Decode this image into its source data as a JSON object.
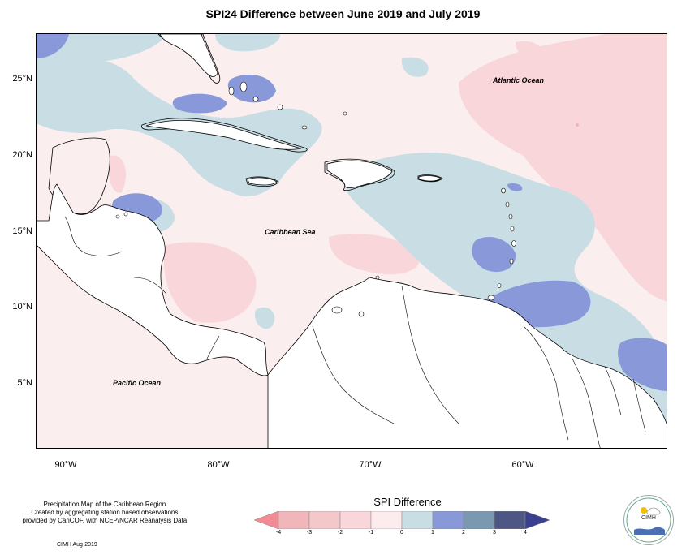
{
  "title": "SPI24 Difference between June 2019 and July 2019",
  "latitude_labels": [
    "25°N",
    "20°N",
    "15°N",
    "10°N",
    "5°N"
  ],
  "longitude_labels": [
    "90°W",
    "80°W",
    "70°W",
    "60°W"
  ],
  "ocean_labels": {
    "atlantic": "Atlantic Ocean",
    "caribbean": "Caribbean Sea",
    "pacific": "Pacific Ocean"
  },
  "footer": {
    "line1": "Precipitation Map of the Caribbean Region.",
    "line2": "Created by aggregating station based observations,",
    "line3": "provided by CariCOF, with NCEP/NCAR Reanalysis Data.",
    "credit": "CIMH Aug-2019"
  },
  "legend": {
    "title": "SPI Difference",
    "ticks": [
      "-4",
      "-3",
      "-2",
      "-1",
      "0",
      "1",
      "2",
      "3",
      "4"
    ],
    "colors": [
      "#f28b94",
      "#f0b6ba",
      "#f9d6da",
      "#fcecee",
      "#c8dde4",
      "#8898d9",
      "#7a98b0",
      "#4e5784",
      "#3b3f8f"
    ]
  },
  "logo": {
    "text": "CIMH"
  }
}
